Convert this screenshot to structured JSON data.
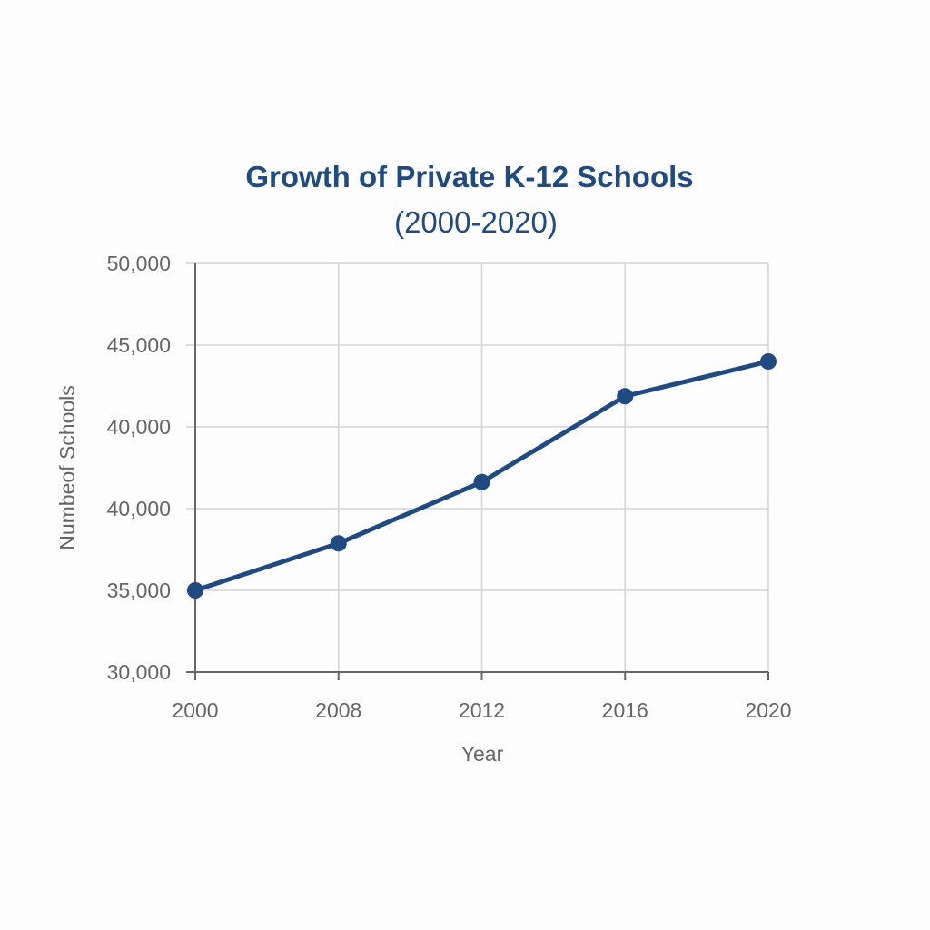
{
  "chart_data": {
    "type": "line",
    "title": "Growth of Private K-12 Schools",
    "subtitle": "(2000-2020)",
    "xlabel": "Year",
    "ylabel": "Numbeof Schools",
    "categories": [
      "2000",
      "2008",
      "2012",
      "2016",
      "2020"
    ],
    "y_tick_labels": [
      "50,000",
      "45,000",
      "40,000",
      "40,000",
      "35,000",
      "30,000"
    ],
    "ylim": [
      30000,
      50000
    ],
    "grid": true,
    "series": [
      {
        "values": [
          34000,
          36300,
          39300,
          43500,
          45200
        ],
        "color": "#1f4a82"
      }
    ]
  }
}
